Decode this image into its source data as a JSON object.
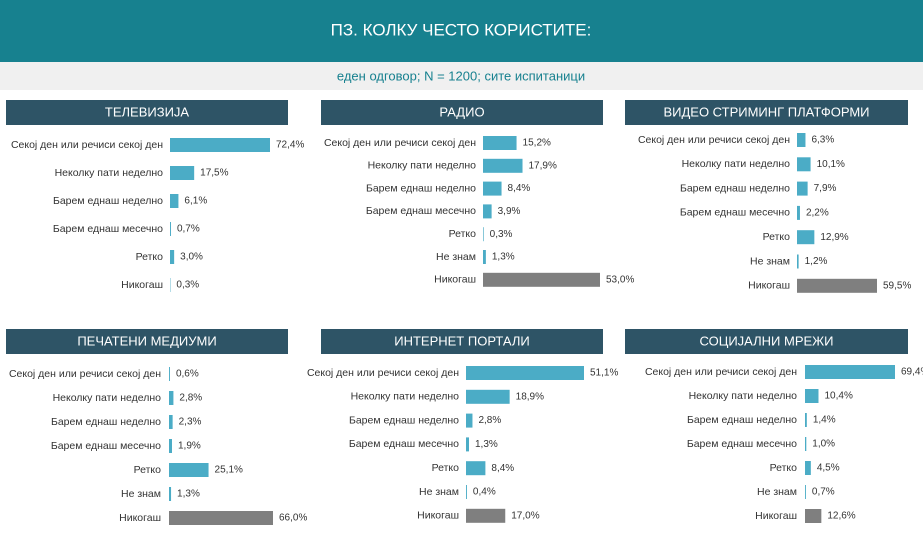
{
  "header": {
    "title": "ПЗ. КОЛКУ ЧЕСТО КОРИСТИТЕ:",
    "subtitle": "еден одговор; N = 1200; сите испитаници"
  },
  "chart_data": [
    {
      "type": "bar",
      "orientation": "horizontal",
      "title": "ТЕЛЕВИЗИЈА",
      "categories": [
        "Секој ден или речиси секој ден",
        "Неколку пати неделно",
        "Барем еднаш неделно",
        "Барем еднаш месечно",
        "Ретко",
        "Никогаш"
      ],
      "values": [
        72.4,
        17.5,
        6.1,
        0.7,
        3.0,
        0.3
      ],
      "value_labels": [
        "72,4%",
        "17,5%",
        "6,1%",
        "0,7%",
        "3,0%",
        "0,3%"
      ],
      "colors": [
        "#4bacc6",
        "#4bacc6",
        "#4bacc6",
        "#4bacc6",
        "#4bacc6",
        "#4bacc6"
      ]
    },
    {
      "type": "bar",
      "orientation": "horizontal",
      "title": "РАДИО",
      "categories": [
        "Секој ден или речиси секој ден",
        "Неколку пати неделно",
        "Барем еднаш неделно",
        "Барем еднаш месечно",
        "Ретко",
        "Не знам",
        "Никогаш"
      ],
      "values": [
        15.2,
        17.9,
        8.4,
        3.9,
        0.3,
        1.3,
        53.0
      ],
      "value_labels": [
        "15,2%",
        "17,9%",
        "8,4%",
        "3,9%",
        "0,3%",
        "1,3%",
        "53,0%"
      ],
      "colors": [
        "#4bacc6",
        "#4bacc6",
        "#4bacc6",
        "#4bacc6",
        "#4bacc6",
        "#4bacc6",
        "#7f7f7f"
      ]
    },
    {
      "type": "bar",
      "orientation": "horizontal",
      "title": "ВИДЕО СТРИМИНГ ПЛАТФОРМИ",
      "categories": [
        "Секој ден или речиси секој ден",
        "Неколку пати неделно",
        "Барем еднаш неделно",
        "Барем еднаш месечно",
        "Ретко",
        "Не знам",
        "Никогаш"
      ],
      "values": [
        6.3,
        10.1,
        7.9,
        2.2,
        12.9,
        1.2,
        59.5
      ],
      "value_labels": [
        "6,3%",
        "10,1%",
        "7,9%",
        "2,2%",
        "12,9%",
        "1,2%",
        "59,5%"
      ],
      "colors": [
        "#4bacc6",
        "#4bacc6",
        "#4bacc6",
        "#4bacc6",
        "#4bacc6",
        "#4bacc6",
        "#7f7f7f"
      ]
    },
    {
      "type": "bar",
      "orientation": "horizontal",
      "title": "ПЕЧАТЕНИ МЕДИУМИ",
      "categories": [
        "Секој ден или речиси секој ден",
        "Неколку пати неделно",
        "Барем еднаш неделно",
        "Барем еднаш месечно",
        "Ретко",
        "Не знам",
        "Никогаш"
      ],
      "values": [
        0.6,
        2.8,
        2.3,
        1.9,
        25.1,
        1.3,
        66.0
      ],
      "value_labels": [
        "0,6%",
        "2,8%",
        "2,3%",
        "1,9%",
        "25,1%",
        "1,3%",
        "66,0%"
      ],
      "colors": [
        "#4bacc6",
        "#4bacc6",
        "#4bacc6",
        "#4bacc6",
        "#4bacc6",
        "#4bacc6",
        "#7f7f7f"
      ]
    },
    {
      "type": "bar",
      "orientation": "horizontal",
      "title": "ИНТЕРНЕТ ПОРТАЛИ",
      "categories": [
        "Секој ден или речиси секој ден",
        "Неколку пати неделно",
        "Барем еднаш неделно",
        "Барем еднаш месечно",
        "Ретко",
        "Не знам",
        "Никогаш"
      ],
      "values": [
        51.1,
        18.9,
        2.8,
        1.3,
        8.4,
        0.4,
        17.0
      ],
      "value_labels": [
        "51,1%",
        "18,9%",
        "2,8%",
        "1,3%",
        "8,4%",
        "0,4%",
        "17,0%"
      ],
      "colors": [
        "#4bacc6",
        "#4bacc6",
        "#4bacc6",
        "#4bacc6",
        "#4bacc6",
        "#4bacc6",
        "#7f7f7f"
      ]
    },
    {
      "type": "bar",
      "orientation": "horizontal",
      "title": "СОЦИЈАЛНИ МРЕЖИ",
      "categories": [
        "Секој ден или речиси секој ден",
        "Неколку пати неделно",
        "Барем еднаш неделно",
        "Барем еднаш месечно",
        "Ретко",
        "Не знам",
        "Никогаш"
      ],
      "values": [
        69.4,
        10.4,
        1.4,
        1.0,
        4.5,
        0.7,
        12.6
      ],
      "value_labels": [
        "69,4%",
        "10,4%",
        "1,4%",
        "1,0%",
        "4,5%",
        "0,7%",
        "12,6%"
      ],
      "colors": [
        "#4bacc6",
        "#4bacc6",
        "#4bacc6",
        "#4bacc6",
        "#4bacc6",
        "#4bacc6",
        "#7f7f7f"
      ]
    }
  ]
}
